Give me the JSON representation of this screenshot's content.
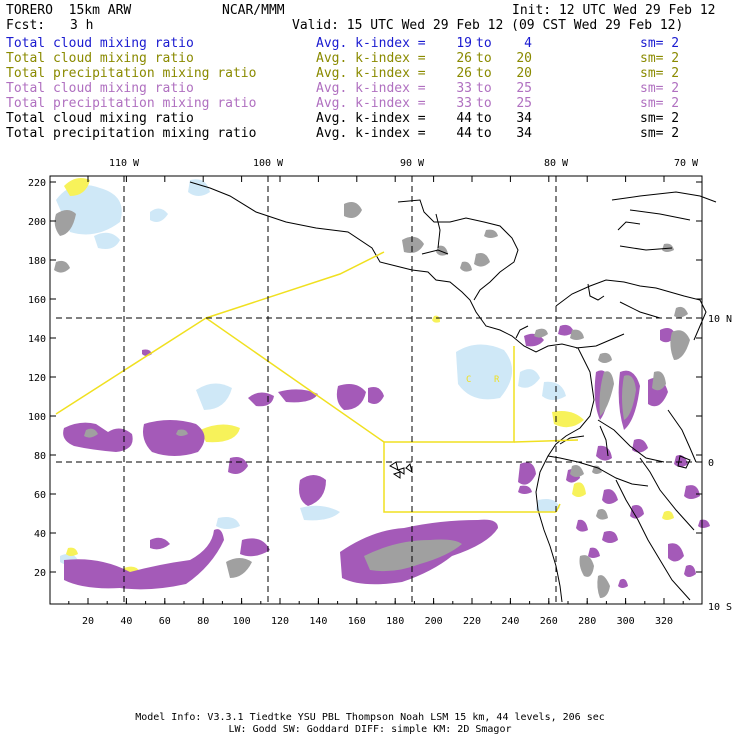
{
  "header": {
    "model": "TORERO  15km ARW",
    "org": "NCAR/MMM",
    "init": "Init: 12 UTC Wed 29 Feb 12",
    "fcst_label": "Fcst:",
    "fcst_value": "3 h",
    "valid": "Valid: 15 UTC Wed 29 Feb 12 (09 CST Wed 29 Feb 12)"
  },
  "legend": [
    {
      "field": "Total cloud mixing ratio",
      "kindex": "Avg. k-index =",
      "from": "19",
      "to_word": "to",
      "to": "4",
      "sm": "sm= 2",
      "color": "#1a1ad0"
    },
    {
      "field": "Total cloud mixing ratio",
      "kindex": "Avg. k-index =",
      "from": "26",
      "to_word": "to",
      "to": "20",
      "sm": "sm= 2",
      "color": "#8a8a00"
    },
    {
      "field": "Total precipitation mixing ratio",
      "kindex": "Avg. k-index =",
      "from": "26",
      "to_word": "to",
      "to": "20",
      "sm": "sm= 2",
      "color": "#8a8a00"
    },
    {
      "field": "Total cloud mixing ratio",
      "kindex": "Avg. k-index =",
      "from": "33",
      "to_word": "to",
      "to": "25",
      "sm": "sm= 2",
      "color": "#b070c0"
    },
    {
      "field": "Total precipitation mixing ratio",
      "kindex": "Avg. k-index =",
      "from": "33",
      "to_word": "to",
      "to": "25",
      "sm": "sm= 2",
      "color": "#b070c0"
    },
    {
      "field": "Total cloud mixing ratio",
      "kindex": "Avg. k-index =",
      "from": "44",
      "to_word": "to",
      "to": "34",
      "sm": "sm= 2",
      "color": "#000000"
    },
    {
      "field": "Total precipitation mixing ratio",
      "kindex": "Avg. k-index =",
      "from": "44",
      "to_word": "to",
      "to": "34",
      "sm": "sm= 2",
      "color": "#000000"
    }
  ],
  "map": {
    "top_lon_labels": [
      "110 W",
      "100 W",
      "90 W",
      "80 W",
      "70 W"
    ],
    "right_lat_labels": [
      "10 N",
      "0",
      "10 S"
    ],
    "left_grid_labels": [
      "220",
      "200",
      "180",
      "160",
      "140",
      "120",
      "100",
      "80",
      "60",
      "40",
      "20"
    ],
    "bottom_grid_labels": [
      "20",
      "40",
      "60",
      "80",
      "100",
      "120",
      "140",
      "160",
      "180",
      "200",
      "220",
      "240",
      "260",
      "280",
      "300",
      "320"
    ],
    "colors": {
      "light_blue": "#cfe8f7",
      "yellow_fill": "#f7f25a",
      "purple_fill": "#a45ab8",
      "gray_fill": "#a0a0a0",
      "coast": "#000000",
      "boxes": "#f0e020"
    }
  },
  "footer": {
    "line1": "Model Info: V3.3.1   Tiedtke YSU PBL  Thompson    Noah LSM  15 km,   44 levels,  206 sec",
    "line2": "LW: Godd SW: Goddard DIFF: simple KM: 2D Smagor"
  }
}
